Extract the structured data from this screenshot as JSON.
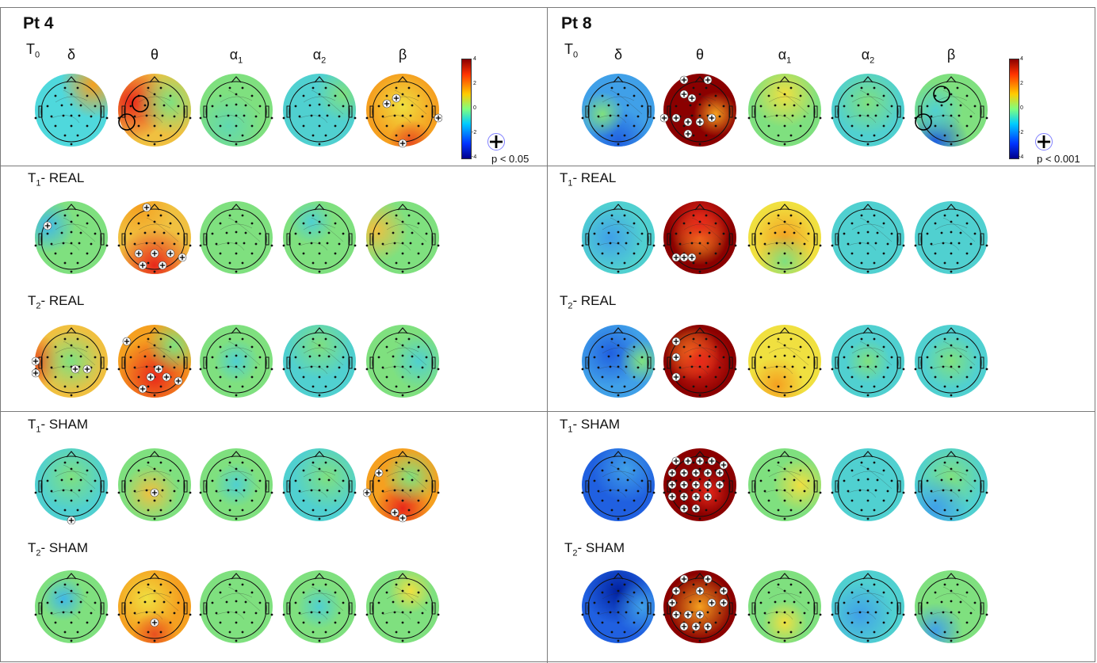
{
  "panels": [
    {
      "title": "Pt 4",
      "t0_label": "T",
      "t0_sub": "0",
      "bands": [
        {
          "sym": "δ",
          "sub": ""
        },
        {
          "sym": "θ",
          "sub": ""
        },
        {
          "sym": "α",
          "sub": "1"
        },
        {
          "sym": "α",
          "sub": "2"
        },
        {
          "sym": "β",
          "sub": ""
        }
      ],
      "colorbar_ticks": [
        "4",
        "2",
        "0",
        "-2",
        "-4"
      ],
      "significance_label": "p < 0.05",
      "rows": [
        {
          "prefix": "T",
          "sub": "1",
          "suffix": "- REAL"
        },
        {
          "prefix": "T",
          "sub": "2",
          "suffix": "- REAL"
        },
        {
          "prefix": "T",
          "sub": "1",
          "suffix": "- SHAM"
        },
        {
          "prefix": "T",
          "sub": "2",
          "suffix": "- SHAM"
        }
      ]
    },
    {
      "title": "Pt 8",
      "t0_label": "T",
      "t0_sub": "0",
      "bands": [
        {
          "sym": "δ",
          "sub": ""
        },
        {
          "sym": "θ",
          "sub": ""
        },
        {
          "sym": "α",
          "sub": "1"
        },
        {
          "sym": "α",
          "sub": "2"
        },
        {
          "sym": "β",
          "sub": ""
        }
      ],
      "colorbar_ticks": [
        "4",
        "2",
        "0",
        "-2",
        "-4"
      ],
      "significance_label": "p < 0.001",
      "rows": [
        {
          "prefix": "T",
          "sub": "1",
          "suffix": "- REAL"
        },
        {
          "prefix": "T",
          "sub": "2",
          "suffix": "- REAL"
        },
        {
          "prefix": "T",
          "sub": "1",
          "suffix": "- SHAM"
        },
        {
          "prefix": "T",
          "sub": "2",
          "suffix": "- SHAM"
        }
      ]
    }
  ],
  "colors": {
    "dark_red": "#8b0000",
    "red": "#e8281a",
    "orange": "#f5a020",
    "yellow": "#f0e040",
    "green": "#7fe07f",
    "cyan": "#40d8e8",
    "blue": "#2060e0",
    "dark_blue": "#0020a0"
  },
  "maps": {
    "p4": [
      [
        {
          "b": "#4fd8dc",
          "s": [
            [
              "#f5a020",
              0.78,
              0.18,
              0.3
            ],
            [
              "#4fd8dc",
              0.3,
              0.5,
              0.25
            ]
          ],
          "p": []
        },
        {
          "b": "#f0c040",
          "s": [
            [
              "#e8281a",
              0.2,
              0.4,
              0.35
            ],
            [
              "#7fe07f",
              0.7,
              0.4,
              0.3
            ]
          ],
          "p": [],
          "c": [
            [
              0.32,
              0.42
            ],
            [
              0.15,
              0.65
            ]
          ]
        },
        {
          "b": "#7fe07f",
          "s": [
            [
              "#60d8b0",
              0.4,
              0.7,
              0.3
            ]
          ],
          "p": []
        },
        {
          "b": "#50d0d0",
          "s": [
            [
              "#7fe07f",
              0.8,
              0.3,
              0.25
            ]
          ],
          "p": []
        },
        {
          "b": "#f5a020",
          "s": [
            [
              "#f0e040",
              0.5,
              0.45,
              0.3
            ],
            [
              "#e85020",
              0.6,
              0.9,
              0.2
            ]
          ],
          "p": [
            [
              0.3,
              0.42
            ],
            [
              0.42,
              0.35
            ],
            [
              0.95,
              0.6
            ],
            [
              0.5,
              0.92
            ]
          ]
        }
      ],
      [
        {
          "b": "#7fe07f",
          "s": [
            [
              "#40b8e8",
              0.2,
              0.35,
              0.25
            ]
          ],
          "p": [
            [
              0.2,
              0.35
            ]
          ]
        },
        {
          "b": "#f0c040",
          "s": [
            [
              "#e8281a",
              0.5,
              0.85,
              0.35
            ],
            [
              "#f5a020",
              0.3,
              0.1,
              0.3
            ]
          ],
          "p": [
            [
              0.4,
              0.12
            ],
            [
              0.3,
              0.7
            ],
            [
              0.5,
              0.7
            ],
            [
              0.7,
              0.7
            ],
            [
              0.85,
              0.75
            ],
            [
              0.35,
              0.85
            ],
            [
              0.6,
              0.85
            ]
          ]
        },
        {
          "b": "#7fe07f",
          "s": [],
          "p": []
        },
        {
          "b": "#7fe07f",
          "s": [
            [
              "#50d0d0",
              0.4,
              0.3,
              0.2
            ]
          ],
          "p": []
        },
        {
          "b": "#7fe07f",
          "s": [
            [
              "#f0c040",
              0.15,
              0.4,
              0.3
            ]
          ],
          "p": []
        }
      ],
      [
        {
          "b": "#f0c040",
          "s": [
            [
              "#e85020",
              0.05,
              0.5,
              0.25
            ],
            [
              "#7fe07f",
              0.5,
              0.5,
              0.3
            ]
          ],
          "p": [
            [
              0.05,
              0.5
            ],
            [
              0.05,
              0.65
            ],
            [
              0.55,
              0.6
            ],
            [
              0.7,
              0.6
            ]
          ]
        },
        {
          "b": "#f5a020",
          "s": [
            [
              "#e8281a",
              0.5,
              0.7,
              0.35
            ],
            [
              "#7fe07f",
              0.75,
              0.3,
              0.25
            ]
          ],
          "p": [
            [
              0.15,
              0.25
            ],
            [
              0.45,
              0.7
            ],
            [
              0.55,
              0.6
            ],
            [
              0.65,
              0.7
            ],
            [
              0.8,
              0.75
            ],
            [
              0.35,
              0.85
            ]
          ]
        },
        {
          "b": "#7fe07f",
          "s": [
            [
              "#50d0d0",
              0.5,
              0.5,
              0.2
            ]
          ],
          "p": []
        },
        {
          "b": "#50d0d0",
          "s": [
            [
              "#7fe07f",
              0.5,
              0.3,
              0.3
            ]
          ],
          "p": []
        },
        {
          "b": "#7fe07f",
          "s": [
            [
              "#50d0d0",
              0.7,
              0.5,
              0.25
            ]
          ],
          "p": []
        }
      ],
      [
        {
          "b": "#50d0d0",
          "s": [
            [
              "#7fe07f",
              0.5,
              0.4,
              0.3
            ]
          ],
          "p": [
            [
              0.5,
              0.95
            ]
          ]
        },
        {
          "b": "#7fe07f",
          "s": [
            [
              "#f0c040",
              0.45,
              0.6,
              0.25
            ]
          ],
          "p": [
            [
              0.5,
              0.6
            ]
          ]
        },
        {
          "b": "#7fe07f",
          "s": [
            [
              "#50d0d0",
              0.5,
              0.5,
              0.2
            ]
          ],
          "p": []
        },
        {
          "b": "#50d0d0",
          "s": [
            [
              "#7fe07f",
              0.6,
              0.4,
              0.3
            ]
          ],
          "p": []
        },
        {
          "b": "#f5a020",
          "s": [
            [
              "#e8281a",
              0.5,
              0.8,
              0.25
            ],
            [
              "#7fe07f",
              0.6,
              0.4,
              0.25
            ]
          ],
          "p": [
            [
              0.2,
              0.35
            ],
            [
              0.05,
              0.6
            ],
            [
              0.4,
              0.85
            ],
            [
              0.5,
              0.92
            ]
          ]
        }
      ],
      [
        {
          "b": "#7fe07f",
          "s": [
            [
              "#40b8e8",
              0.4,
              0.4,
              0.2
            ]
          ],
          "p": []
        },
        {
          "b": "#f5a020",
          "s": [
            [
              "#f0e040",
              0.4,
              0.4,
              0.3
            ],
            [
              "#e85020",
              0.5,
              0.85,
              0.2
            ]
          ],
          "p": [
            [
              0.5,
              0.7
            ]
          ]
        },
        {
          "b": "#7fe07f",
          "s": [],
          "p": []
        },
        {
          "b": "#7fe07f",
          "s": [
            [
              "#50d0d0",
              0.5,
              0.5,
              0.2
            ]
          ],
          "p": []
        },
        {
          "b": "#7fe07f",
          "s": [
            [
              "#f0e040",
              0.6,
              0.3,
              0.2
            ]
          ],
          "p": []
        }
      ]
    ],
    "p8": [
      [
        {
          "b": "#40a0e8",
          "s": [
            [
              "#2060e0",
              0.5,
              0.9,
              0.3
            ],
            [
              "#7fe07f",
              0.3,
              0.55,
              0.2
            ]
          ],
          "p": []
        },
        {
          "b": "#8b0000",
          "s": [
            [
              "#f5a020",
              0.7,
              0.55,
              0.2
            ]
          ],
          "p": [
            [
              0.3,
              0.12
            ],
            [
              0.6,
              0.12
            ],
            [
              0.3,
              0.3
            ],
            [
              0.4,
              0.35
            ],
            [
              0.05,
              0.6
            ],
            [
              0.2,
              0.6
            ],
            [
              0.35,
              0.65
            ],
            [
              0.5,
              0.65
            ],
            [
              0.65,
              0.6
            ],
            [
              0.35,
              0.8
            ]
          ]
        },
        {
          "b": "#7fe07f",
          "s": [
            [
              "#f0e040",
              0.5,
              0.3,
              0.3
            ]
          ],
          "p": []
        },
        {
          "b": "#50d0d0",
          "s": [
            [
              "#7fe07f",
              0.5,
              0.4,
              0.3
            ]
          ],
          "p": []
        },
        {
          "b": "#7fe07f",
          "s": [
            [
              "#2060e0",
              0.3,
              0.9,
              0.3
            ],
            [
              "#50d0d0",
              0.3,
              0.5,
              0.25
            ]
          ],
          "p": [],
          "c": [
            [
              0.38,
              0.3
            ],
            [
              0.15,
              0.65
            ]
          ]
        }
      ],
      [
        {
          "b": "#50d0d0",
          "s": [
            [
              "#40a0e8",
              0.4,
              0.5,
              0.3
            ]
          ],
          "p": []
        },
        {
          "b": "#8b0000",
          "s": [
            [
              "#f5a020",
              0.5,
              0.5,
              0.25
            ],
            [
              "#e8281a",
              0.5,
              0.3,
              0.3
            ]
          ],
          "p": [
            [
              0.2,
              0.75
            ],
            [
              0.3,
              0.75
            ],
            [
              0.4,
              0.75
            ]
          ]
        },
        {
          "b": "#f0e040",
          "s": [
            [
              "#f5a020",
              0.5,
              0.5,
              0.3
            ],
            [
              "#7fe07f",
              0.5,
              0.8,
              0.25
            ]
          ],
          "p": []
        },
        {
          "b": "#50d0d0",
          "s": [],
          "p": []
        },
        {
          "b": "#50d0d0",
          "s": [],
          "p": []
        }
      ],
      [
        {
          "b": "#40a0e8",
          "s": [
            [
              "#2060e0",
              0.4,
              0.4,
              0.3
            ],
            [
              "#7fe07f",
              0.8,
              0.5,
              0.2
            ]
          ],
          "p": []
        },
        {
          "b": "#8b0000",
          "s": [
            [
              "#f5a020",
              0.4,
              0.4,
              0.25
            ],
            [
              "#e8281a",
              0.5,
              0.5,
              0.3
            ]
          ],
          "p": [
            [
              0.2,
              0.25
            ],
            [
              0.2,
              0.45
            ],
            [
              0.2,
              0.7
            ]
          ]
        },
        {
          "b": "#f0e040",
          "s": [
            [
              "#f5a020",
              0.4,
              0.8,
              0.25
            ]
          ],
          "p": []
        },
        {
          "b": "#50d0d0",
          "s": [
            [
              "#7fe07f",
              0.5,
              0.5,
              0.2
            ]
          ],
          "p": []
        },
        {
          "b": "#50d0d0",
          "s": [
            [
              "#7fe07f",
              0.5,
              0.5,
              0.25
            ]
          ],
          "p": []
        }
      ],
      [
        {
          "b": "#2060e0",
          "s": [
            [
              "#40a0e8",
              0.6,
              0.3,
              0.3
            ]
          ],
          "p": []
        },
        {
          "b": "#8b0000",
          "s": [
            [
              "#e8281a",
              0.6,
              0.6,
              0.2
            ]
          ],
          "p": [
            [
              0.2,
              0.2
            ],
            [
              0.35,
              0.2
            ],
            [
              0.5,
              0.2
            ],
            [
              0.65,
              0.2
            ],
            [
              0.8,
              0.25
            ],
            [
              0.15,
              0.35
            ],
            [
              0.3,
              0.35
            ],
            [
              0.45,
              0.35
            ],
            [
              0.6,
              0.35
            ],
            [
              0.75,
              0.35
            ],
            [
              0.15,
              0.5
            ],
            [
              0.3,
              0.5
            ],
            [
              0.45,
              0.5
            ],
            [
              0.6,
              0.5
            ],
            [
              0.75,
              0.5
            ],
            [
              0.15,
              0.65
            ],
            [
              0.3,
              0.65
            ],
            [
              0.45,
              0.65
            ],
            [
              0.6,
              0.65
            ],
            [
              0.3,
              0.8
            ],
            [
              0.45,
              0.8
            ]
          ]
        },
        {
          "b": "#7fe07f",
          "s": [
            [
              "#f0e040",
              0.7,
              0.5,
              0.25
            ]
          ],
          "p": []
        },
        {
          "b": "#50d0d0",
          "s": [],
          "p": []
        },
        {
          "b": "#50d0d0",
          "s": [
            [
              "#7fe07f",
              0.5,
              0.4,
              0.3
            ],
            [
              "#40a0e8",
              0.3,
              0.8,
              0.3
            ]
          ],
          "p": []
        }
      ],
      [
        {
          "b": "#2060e0",
          "s": [
            [
              "#0020a0",
              0.5,
              0.3,
              0.3
            ],
            [
              "#40a0e8",
              0.8,
              0.5,
              0.25
            ]
          ],
          "p": []
        },
        {
          "b": "#8b0000",
          "s": [
            [
              "#f5a020",
              0.5,
              0.5,
              0.3
            ]
          ],
          "p": [
            [
              0.3,
              0.15
            ],
            [
              0.6,
              0.15
            ],
            [
              0.2,
              0.3
            ],
            [
              0.5,
              0.3
            ],
            [
              0.8,
              0.3
            ],
            [
              0.15,
              0.45
            ],
            [
              0.65,
              0.45
            ],
            [
              0.8,
              0.45
            ],
            [
              0.2,
              0.6
            ],
            [
              0.35,
              0.6
            ],
            [
              0.5,
              0.6
            ],
            [
              0.3,
              0.75
            ],
            [
              0.45,
              0.75
            ],
            [
              0.6,
              0.75
            ]
          ]
        },
        {
          "b": "#7fe07f",
          "s": [
            [
              "#f0e040",
              0.5,
              0.7,
              0.2
            ]
          ],
          "p": []
        },
        {
          "b": "#50d0d0",
          "s": [
            [
              "#40a0e8",
              0.4,
              0.6,
              0.3
            ]
          ],
          "p": []
        },
        {
          "b": "#7fe07f",
          "s": [
            [
              "#40a0e8",
              0.3,
              0.8,
              0.25
            ]
          ],
          "p": []
        }
      ]
    ]
  }
}
